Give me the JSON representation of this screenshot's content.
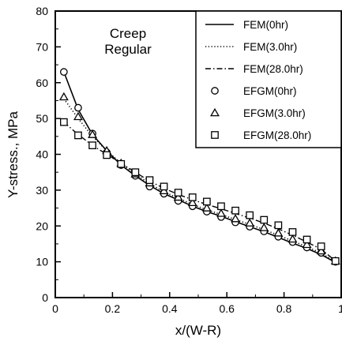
{
  "chart_data": {
    "type": "line",
    "xlabel": "x/(W-R)",
    "ylabel": "Y-stress., MPa",
    "xlim": [
      0,
      1
    ],
    "ylim": [
      0,
      80
    ],
    "xticks": [
      0,
      0.2,
      0.4,
      0.6,
      0.8,
      1
    ],
    "xtick_labels": [
      "0",
      "0.2",
      "0.4",
      "0.6",
      "0.8",
      "1"
    ],
    "yticks": [
      0,
      10,
      20,
      30,
      40,
      50,
      60,
      70,
      80
    ],
    "ytick_labels": [
      "0",
      "10",
      "20",
      "30",
      "40",
      "50",
      "60",
      "70",
      "80"
    ],
    "grid": false,
    "legend_position": "top-right",
    "annotation": [
      "Creep",
      "Regular"
    ],
    "series": [
      {
        "name": "FEM(0hr)",
        "style": "solid-line",
        "x": [
          0.03,
          0.08,
          0.13,
          0.18,
          0.23,
          0.28,
          0.33,
          0.38,
          0.43,
          0.48,
          0.53,
          0.58,
          0.63,
          0.68,
          0.73,
          0.78,
          0.83,
          0.88,
          0.93,
          0.98
        ],
        "y": [
          63,
          52.5,
          45.5,
          41,
          37,
          34,
          31.3,
          29,
          27.3,
          25.5,
          24,
          22.7,
          21.2,
          19.8,
          18.4,
          16.8,
          15.2,
          13.7,
          12,
          9.8
        ]
      },
      {
        "name": "FEM(3.0hr)",
        "style": "dotted-line",
        "x": [
          0.03,
          0.08,
          0.13,
          0.18,
          0.23,
          0.28,
          0.33,
          0.38,
          0.43,
          0.48,
          0.53,
          0.58,
          0.63,
          0.68,
          0.73,
          0.78,
          0.83,
          0.88,
          0.93,
          0.98
        ],
        "y": [
          55.5,
          50,
          45,
          41,
          37.5,
          34.5,
          31.8,
          29.5,
          27.8,
          26,
          24.5,
          23.2,
          21.8,
          20.4,
          19,
          17.4,
          15.8,
          14.2,
          12.4,
          10
        ]
      },
      {
        "name": "FEM(28.0hr)",
        "style": "dash-dot-line",
        "x": [
          0.03,
          0.08,
          0.13,
          0.18,
          0.23,
          0.28,
          0.33,
          0.38,
          0.43,
          0.48,
          0.53,
          0.58,
          0.63,
          0.68,
          0.73,
          0.78,
          0.83,
          0.88,
          0.93,
          0.98
        ],
        "y": [
          49,
          45.5,
          42.5,
          40,
          37.5,
          35,
          32.5,
          30.5,
          28.8,
          27.3,
          26,
          24.8,
          23.5,
          22.2,
          20.8,
          19.2,
          17.4,
          15.5,
          13.5,
          10.2
        ]
      },
      {
        "name": "EFGM(0hr)",
        "style": "circle-marker",
        "x": [
          0.03,
          0.08,
          0.13,
          0.18,
          0.23,
          0.28,
          0.33,
          0.38,
          0.43,
          0.48,
          0.53,
          0.58,
          0.63,
          0.68,
          0.73,
          0.78,
          0.83,
          0.88,
          0.93,
          0.98
        ],
        "y": [
          63,
          53,
          45.8,
          40.5,
          37,
          34,
          31,
          29,
          27,
          25.5,
          24,
          22.5,
          21,
          19.8,
          18.5,
          17,
          15.5,
          14,
          12.5,
          10
        ]
      },
      {
        "name": "EFGM(3.0hr)",
        "style": "triangle-marker",
        "x": [
          0.03,
          0.08,
          0.13,
          0.18,
          0.23,
          0.28,
          0.33,
          0.38,
          0.43,
          0.48,
          0.53,
          0.58,
          0.63,
          0.68,
          0.73,
          0.78,
          0.83,
          0.88,
          0.93,
          0.98
        ],
        "y": [
          56,
          50.5,
          45.5,
          41,
          37.5,
          34.5,
          32,
          29.8,
          28,
          26.5,
          25,
          23.5,
          22,
          20.8,
          19.5,
          18,
          16.3,
          14.8,
          13,
          10.2
        ]
      },
      {
        "name": "EFGM(28.0hr)",
        "style": "square-marker",
        "x": [
          0.03,
          0.08,
          0.13,
          0.18,
          0.23,
          0.28,
          0.33,
          0.38,
          0.43,
          0.48,
          0.53,
          0.58,
          0.63,
          0.68,
          0.73,
          0.78,
          0.83,
          0.88,
          0.93,
          0.98
        ],
        "y": [
          49,
          45.3,
          42.5,
          39.8,
          37.3,
          35,
          32.8,
          31,
          29.3,
          28,
          26.8,
          25.5,
          24.3,
          23,
          21.7,
          20.2,
          18.3,
          16.2,
          14.3,
          10.2
        ]
      }
    ]
  }
}
